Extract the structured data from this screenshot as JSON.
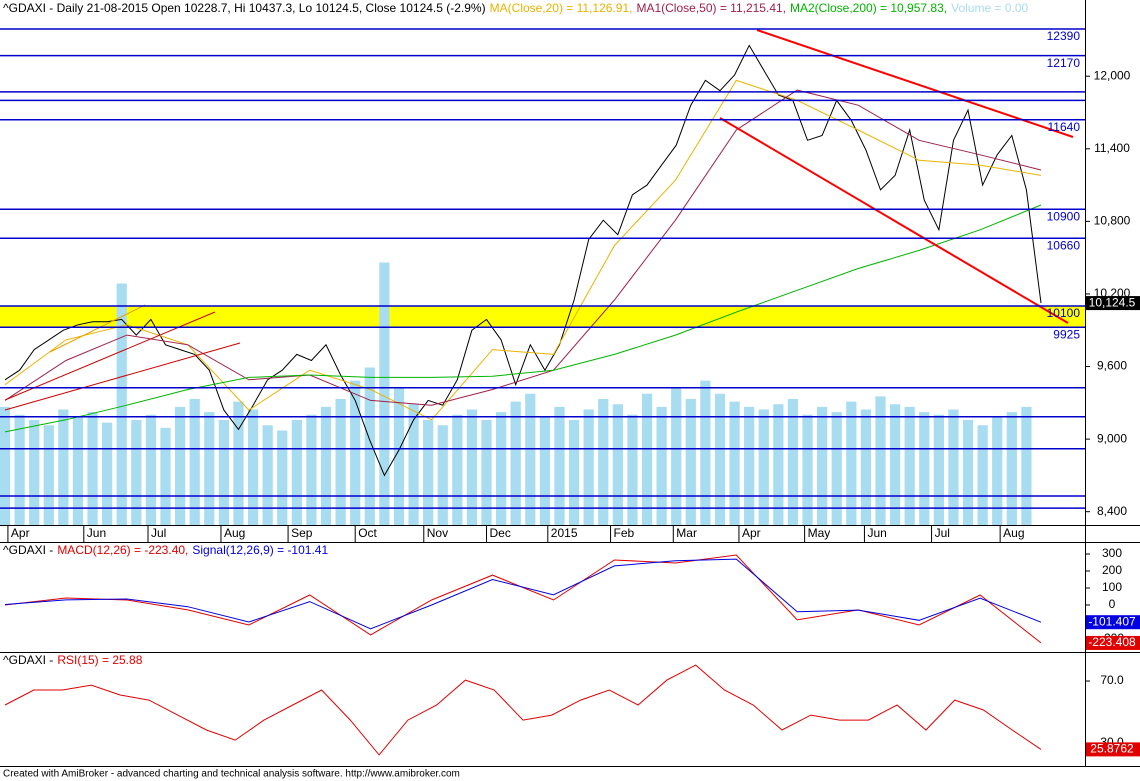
{
  "chart_data": [
    {
      "type": "line",
      "series": [
        {
          "name": "^GDAXI - Daily 21-08-2015 Open 10228.7, Hi 10437.3, Lo 10124.5, Close 10124.5 (-2.9%)",
          "color": "#000000",
          "values": [
            9490,
            9570,
            9740,
            9820,
            9900,
            9945,
            9970,
            9970,
            9990,
            9860,
            9990,
            9780,
            9740,
            9700,
            9570,
            9240,
            9080,
            9280,
            9490,
            9570,
            9700,
            9650,
            9780,
            9530,
            9320,
            8990,
            8700,
            8910,
            9160,
            9320,
            9280,
            9490,
            9900,
            9990,
            9820,
            9450,
            9780,
            9570,
            9780,
            10150,
            10650,
            10810,
            10690,
            11020,
            11100,
            11265,
            11430,
            11760,
            11965,
            11880,
            12010,
            12255,
            12050,
            11845,
            11800,
            11470,
            11510,
            11800,
            11635,
            11390,
            11060,
            11180,
            11555,
            10975,
            10730,
            11470,
            11720,
            11100,
            11350,
            11510,
            11060,
            10124.5
          ]
        },
        {
          "name": "MA(Close,20) = 11,126.91,",
          "color": "#e8b400",
          "values": [
            9450,
            9820,
            9945,
            9780,
            9240,
            9570,
            9410,
            9160,
            9740,
            9700,
            10600,
            11140,
            11965,
            11800,
            11555,
            11305,
            11265,
            11180
          ]
        },
        {
          "name": "MA1(Close,50) = 11,215.41,",
          "color": "#a0204a",
          "values": [
            9320,
            9650,
            9860,
            9780,
            9490,
            9530,
            9320,
            9280,
            9410,
            9570,
            10150,
            10810,
            11555,
            11885,
            11760,
            11470,
            11350,
            11225
          ]
        },
        {
          "name": "MA2(Close,200) = 10,957.83,",
          "color": "#00b400",
          "values": [
            9060,
            9160,
            9280,
            9410,
            9510,
            9530,
            9510,
            9510,
            9520,
            9570,
            9700,
            9860,
            10050,
            10230,
            10410,
            10560,
            10730,
            10935
          ]
        },
        {
          "name": "Volume = 0.00",
          "color": "#a8dcf0",
          "type": "bar",
          "axis": "y2",
          "values": [
            45,
            42,
            40,
            38,
            44,
            41,
            43,
            39,
            92,
            40,
            42,
            37,
            45,
            48,
            43,
            40,
            47,
            44,
            38,
            36,
            40,
            42,
            45,
            48,
            55,
            60,
            100,
            52,
            46,
            40,
            38,
            42,
            44,
            40,
            43,
            47,
            50,
            41,
            45,
            40,
            44,
            48,
            46,
            42,
            50,
            45,
            52,
            48,
            55,
            50,
            47,
            45,
            44,
            46,
            48,
            42,
            45,
            43,
            47,
            44,
            49,
            46,
            45,
            43,
            42,
            44,
            40,
            38,
            41,
            43,
            45,
            0
          ]
        }
      ],
      "ylim": [
        8290,
        12630
      ],
      "y2lim": [
        0,
        200
      ],
      "yticks": [
        {
          "value": 8400,
          "label": "8,400"
        },
        {
          "value": 9000,
          "label": "9,000"
        },
        {
          "value": 9600,
          "label": "9,600"
        },
        {
          "value": 10200,
          "label": "10,200"
        },
        {
          "value": 10800,
          "label": "10,800"
        },
        {
          "value": 11400,
          "label": "11,400"
        },
        {
          "value": 12000,
          "label": "12,000"
        }
      ],
      "xticks": [
        {
          "value": 0.2,
          "label": "Apr"
        },
        {
          "value": 5.4,
          "label": "Jun"
        },
        {
          "value": 9.8,
          "label": "Jul"
        },
        {
          "value": 14.8,
          "label": "Aug"
        },
        {
          "value": 19.4,
          "label": "Sep"
        },
        {
          "value": 24,
          "label": "Oct"
        },
        {
          "value": 28.7,
          "label": "Nov"
        },
        {
          "value": 33,
          "label": "Dec"
        },
        {
          "value": 37.2,
          "label": "2015"
        },
        {
          "value": 41.5,
          "label": "Feb"
        },
        {
          "value": 45.8,
          "label": "Mar"
        },
        {
          "value": 50.3,
          "label": "Apr"
        },
        {
          "value": 54.8,
          "label": "May"
        },
        {
          "value": 58.9,
          "label": "Jun"
        },
        {
          "value": 63.5,
          "label": "Jul"
        },
        {
          "value": 68.2,
          "label": "Aug"
        }
      ],
      "levels": [
        12390,
        12170,
        11640,
        10900,
        10660,
        10100,
        9925
      ],
      "other_levels": [
        11870,
        11800,
        9425,
        9185,
        8920,
        8530,
        8430
      ],
      "band": [
        9925,
        10100
      ],
      "level_color": "#0000cc",
      "band_color": "#ffff00",
      "last_label": "10,124.5"
    },
    {
      "type": "line",
      "title": "^GDAXI -",
      "series": [
        {
          "name": "MACD(12,26) = -223.40,",
          "color": "#e00000",
          "values": [
            0,
            41,
            29,
            -29,
            -118,
            59,
            -176,
            29,
            176,
            29,
            265,
            247,
            294,
            -88,
            -29,
            -118,
            59,
            -223.408
          ]
        },
        {
          "name": "Signal(12,26,9) = -101.41",
          "color": "#0000e0",
          "values": [
            3,
            30,
            35,
            -10,
            -100,
            20,
            -140,
            0,
            150,
            60,
            230,
            260,
            270,
            -40,
            -30,
            -90,
            40,
            -101.407
          ]
        }
      ],
      "ylim": [
        -265,
        353
      ],
      "yticks": [
        300,
        200,
        100,
        0,
        -100,
        -200
      ]
    },
    {
      "type": "line",
      "title": "^GDAXI -",
      "series": [
        {
          "name": "RSI(15) = 25.88",
          "color": "#e00000",
          "values": [
            54.5,
            64.2,
            64.2,
            67.4,
            61,
            57.7,
            48,
            38.4,
            31.9,
            44.8,
            54.5,
            64.2,
            44.8,
            22.3,
            44.8,
            54.5,
            70.6,
            64.2,
            44.8,
            48,
            57.7,
            64.2,
            54.5,
            70.6,
            80.3,
            64.2,
            54.5,
            38.4,
            48,
            44.8,
            44.8,
            54.5,
            38.4,
            57.7,
            51.3,
            38.4,
            25.8762
          ]
        }
      ],
      "ylim": [
        15.8,
        86.8
      ],
      "yticks": [
        {
          "value": 30,
          "label": "30.0"
        },
        {
          "value": 70,
          "label": "70.0"
        }
      ]
    }
  ],
  "footer": "Created with AmiBroker - advanced charting and technical analysis software. http://www.amibroker.com"
}
